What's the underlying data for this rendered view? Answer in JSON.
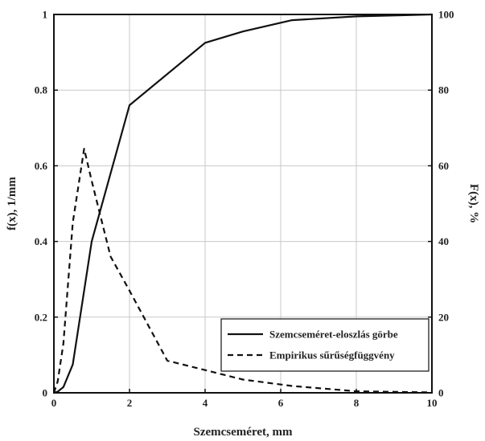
{
  "chart_data": {
    "type": "line",
    "xlabel": "Szemcseméret, mm",
    "ylabel_left": "f(x), 1/mm",
    "ylabel_right": "F(x), %",
    "xlim": [
      0,
      10
    ],
    "ylim_left": [
      0,
      1
    ],
    "ylim_right": [
      0,
      100
    ],
    "x_ticks": [
      0,
      2,
      4,
      6,
      8,
      10
    ],
    "y_ticks_left": [
      0,
      0.2,
      0.4,
      0.6,
      0.8,
      1
    ],
    "y_ticks_right": [
      0,
      20,
      40,
      60,
      80,
      100
    ],
    "grid": true,
    "legend_position": "bottom-right",
    "series": [
      {
        "name": "Szemcseméret-eloszlás görbe",
        "axis": "right",
        "style": "solid",
        "x": [
          0,
          0.1,
          0.25,
          0.5,
          1,
          2,
          4,
          5,
          6.3,
          8,
          10
        ],
        "y": [
          0,
          0.3,
          1.5,
          7.5,
          40,
          76,
          92.5,
          95.5,
          98.5,
          99.5,
          100
        ]
      },
      {
        "name": "Empirikus sűrűségfüggvény",
        "axis": "left",
        "style": "dashed",
        "x": [
          0,
          0.1,
          0.25,
          0.5,
          0.8,
          1,
          1.5,
          2,
          3,
          4,
          5,
          6.3,
          8,
          10
        ],
        "y": [
          0,
          0.03,
          0.13,
          0.45,
          0.645,
          0.56,
          0.36,
          0.27,
          0.085,
          0.06,
          0.035,
          0.018,
          0.004,
          0.001
        ]
      }
    ]
  }
}
